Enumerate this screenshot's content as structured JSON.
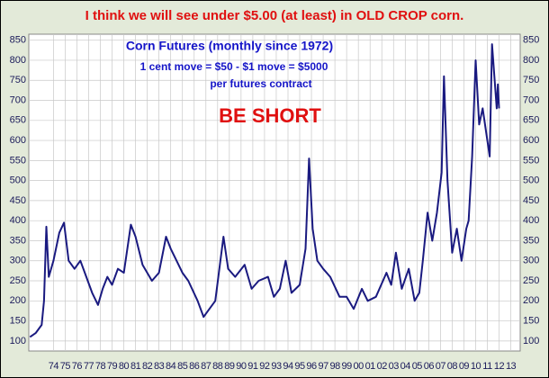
{
  "chart_data": {
    "type": "line",
    "title": "I think we will see under $5.00 (at least) in OLD CROP corn.",
    "annotations": [
      "Corn Futures (monthly since 1972)",
      "1 cent move = $50 - $1 move = $5000",
      "per futures contract",
      "BE SHORT"
    ],
    "x": [
      1972.0,
      1972.5,
      1973.0,
      1973.2,
      1973.4,
      1973.6,
      1974.0,
      1974.5,
      1974.9,
      1975.3,
      1975.8,
      1976.3,
      1976.8,
      1977.3,
      1977.8,
      1978.2,
      1978.6,
      1979.0,
      1979.5,
      1980.0,
      1980.6,
      1981.0,
      1981.6,
      1982.4,
      1983.0,
      1983.6,
      1984.0,
      1984.5,
      1985.0,
      1985.5,
      1986.3,
      1986.8,
      1987.3,
      1987.8,
      1988.5,
      1988.9,
      1989.5,
      1990.3,
      1990.9,
      1991.5,
      1992.3,
      1992.8,
      1993.3,
      1993.8,
      1994.3,
      1995.0,
      1995.5,
      1995.8,
      1996.1,
      1996.5,
      1997.0,
      1997.6,
      1998.4,
      1999.0,
      1999.6,
      2000.3,
      2000.8,
      2001.5,
      2002.4,
      2002.8,
      2003.2,
      2003.7,
      2004.3,
      2004.8,
      2005.2,
      2005.5,
      2005.9,
      2006.3,
      2006.7,
      2007.1,
      2007.3,
      2007.6,
      2008.0,
      2008.4,
      2008.8,
      2009.2,
      2009.4,
      2009.7,
      2010.0,
      2010.3,
      2010.6,
      2010.9,
      2011.2,
      2011.4,
      2011.6,
      2011.8,
      2011.9,
      2012.0
    ],
    "values": [
      110,
      120,
      140,
      200,
      385,
      260,
      300,
      370,
      395,
      300,
      280,
      300,
      260,
      220,
      190,
      230,
      260,
      240,
      280,
      270,
      390,
      360,
      290,
      250,
      270,
      360,
      330,
      300,
      270,
      250,
      200,
      160,
      180,
      200,
      360,
      280,
      260,
      290,
      230,
      250,
      260,
      210,
      230,
      300,
      220,
      240,
      330,
      555,
      380,
      300,
      280,
      260,
      210,
      210,
      180,
      230,
      200,
      210,
      270,
      240,
      320,
      230,
      280,
      200,
      220,
      300,
      420,
      350,
      420,
      520,
      760,
      500,
      320,
      380,
      300,
      380,
      400,
      560,
      800,
      640,
      680,
      620,
      560,
      840,
      760,
      680,
      740,
      680
    ],
    "color": "#1a1a80",
    "xlim": [
      1971.9,
      2013.8
    ],
    "ylim": [
      75,
      865
    ],
    "xticks": [
      {
        "value": 1974,
        "label": "74"
      },
      {
        "value": 1975,
        "label": "75"
      },
      {
        "value": 1976,
        "label": "76"
      },
      {
        "value": 1977,
        "label": "77"
      },
      {
        "value": 1978,
        "label": "78"
      },
      {
        "value": 1979,
        "label": "79"
      },
      {
        "value": 1980,
        "label": "80"
      },
      {
        "value": 1981,
        "label": "81"
      },
      {
        "value": 1982,
        "label": "82"
      },
      {
        "value": 1983,
        "label": "83"
      },
      {
        "value": 1984,
        "label": "84"
      },
      {
        "value": 1985,
        "label": "85"
      },
      {
        "value": 1986,
        "label": "86"
      },
      {
        "value": 1987,
        "label": "87"
      },
      {
        "value": 1988,
        "label": "88"
      },
      {
        "value": 1989,
        "label": "89"
      },
      {
        "value": 1990,
        "label": "90"
      },
      {
        "value": 1991,
        "label": "91"
      },
      {
        "value": 1992,
        "label": "92"
      },
      {
        "value": 1993,
        "label": "93"
      },
      {
        "value": 1994,
        "label": "94"
      },
      {
        "value": 1995,
        "label": "95"
      },
      {
        "value": 1996,
        "label": "96"
      },
      {
        "value": 1997,
        "label": "97"
      },
      {
        "value": 1998,
        "label": "98"
      },
      {
        "value": 1999,
        "label": "99"
      },
      {
        "value": 2000,
        "label": "00"
      },
      {
        "value": 2001,
        "label": "01"
      },
      {
        "value": 2002,
        "label": "02"
      },
      {
        "value": 2003,
        "label": "03"
      },
      {
        "value": 2004,
        "label": "04"
      },
      {
        "value": 2005,
        "label": "05"
      },
      {
        "value": 2006,
        "label": "06"
      },
      {
        "value": 2007,
        "label": "07"
      },
      {
        "value": 2008,
        "label": "08"
      },
      {
        "value": 2009,
        "label": "09"
      },
      {
        "value": 2010,
        "label": "10"
      },
      {
        "value": 2011,
        "label": "11"
      },
      {
        "value": 2012,
        "label": "12"
      },
      {
        "value": 2013,
        "label": "13"
      }
    ],
    "yticks": [
      100,
      150,
      200,
      250,
      300,
      350,
      400,
      450,
      500,
      550,
      600,
      650,
      700,
      750,
      800,
      850
    ],
    "grid": true
  }
}
